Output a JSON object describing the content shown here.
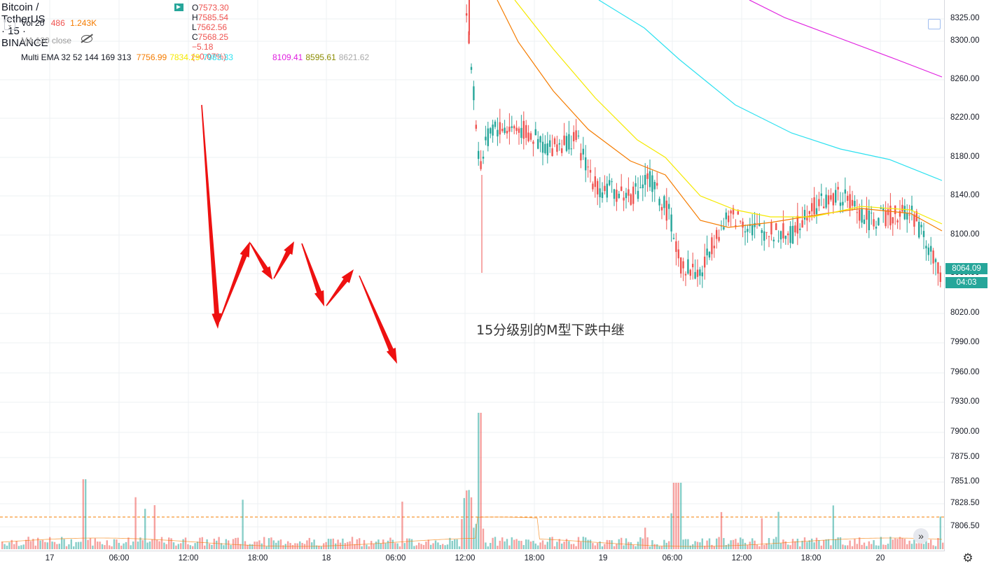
{
  "header": {
    "symbol": "Bitcoin / TetherUS · 15 · BINANCE",
    "ohlc": [
      {
        "k": "O",
        "v": "7573.30"
      },
      {
        "k": "H",
        "v": "7585.54"
      },
      {
        "k": "L",
        "v": "7562.56"
      },
      {
        "k": "C",
        "v": "7568.25"
      },
      {
        "k": "",
        "v": "−5.18 (−0.07%)"
      }
    ]
  },
  "indicators": {
    "vol": {
      "name": "Vol 20",
      "v1": "486",
      "v2": "1.243K"
    },
    "ma": {
      "name": "MA 120 close"
    },
    "ema": {
      "name": "Multi EMA 32 52 144 169 313",
      "values": [
        {
          "v": "7756.99",
          "color": "#f57c00"
        },
        {
          "v": "7834.29",
          "color": "#f5e900"
        },
        {
          "v": "7983.33",
          "color": "#2ee1f0"
        },
        {
          "v": "8109.41",
          "color": "#e020e0"
        },
        {
          "v": "8595.61",
          "color": "#8b8b00"
        },
        {
          "v": "8621.62",
          "color": "#aaaaaa"
        }
      ]
    }
  },
  "price_axis": {
    "ticks": [
      "8325.00",
      "8300.00",
      "8260.00",
      "8220.00",
      "8180.00",
      "8140.00",
      "8100.00",
      "8060.00",
      "8020.00",
      "7990.00",
      "7960.00",
      "7930.00",
      "7900.00",
      "7875.00",
      "7851.00",
      "7828.50",
      "7806.50"
    ],
    "last_price": "8064.09",
    "countdown": "04:03"
  },
  "time_axis": {
    "ticks": [
      "17",
      "06:00",
      "12:00",
      "18:00",
      "18",
      "06:00",
      "12:00",
      "18:00",
      "19",
      "06:00",
      "12:00",
      "18:00",
      "20"
    ]
  },
  "annotation": "15分级别的M型下跌中继",
  "colors": {
    "up": "#26a69a",
    "down": "#ef5350",
    "arrow": "#ee1111"
  },
  "chart_data": {
    "type": "candlestick",
    "title": "Bitcoin / TetherUS · 15 · BINANCE",
    "ylim": [
      7795,
      8335
    ],
    "x_ticks": [
      "17",
      "06:00",
      "12:00",
      "18:00",
      "18",
      "06:00",
      "12:00",
      "18:00",
      "19",
      "06:00",
      "12:00",
      "18:00",
      "20"
    ],
    "y_ticks": [
      8325,
      8300,
      8260,
      8220,
      8180,
      8140,
      8100,
      8060,
      8020,
      7990,
      7960,
      7930,
      7900,
      7875,
      7851,
      7828.5,
      7806.5
    ],
    "last_price": 8064.09,
    "ema_last_values": [
      7756.99,
      7834.29,
      7983.33,
      8109.41,
      8595.61,
      8621.62
    ],
    "volume_last": 486,
    "volume_ma20": 1243
  }
}
